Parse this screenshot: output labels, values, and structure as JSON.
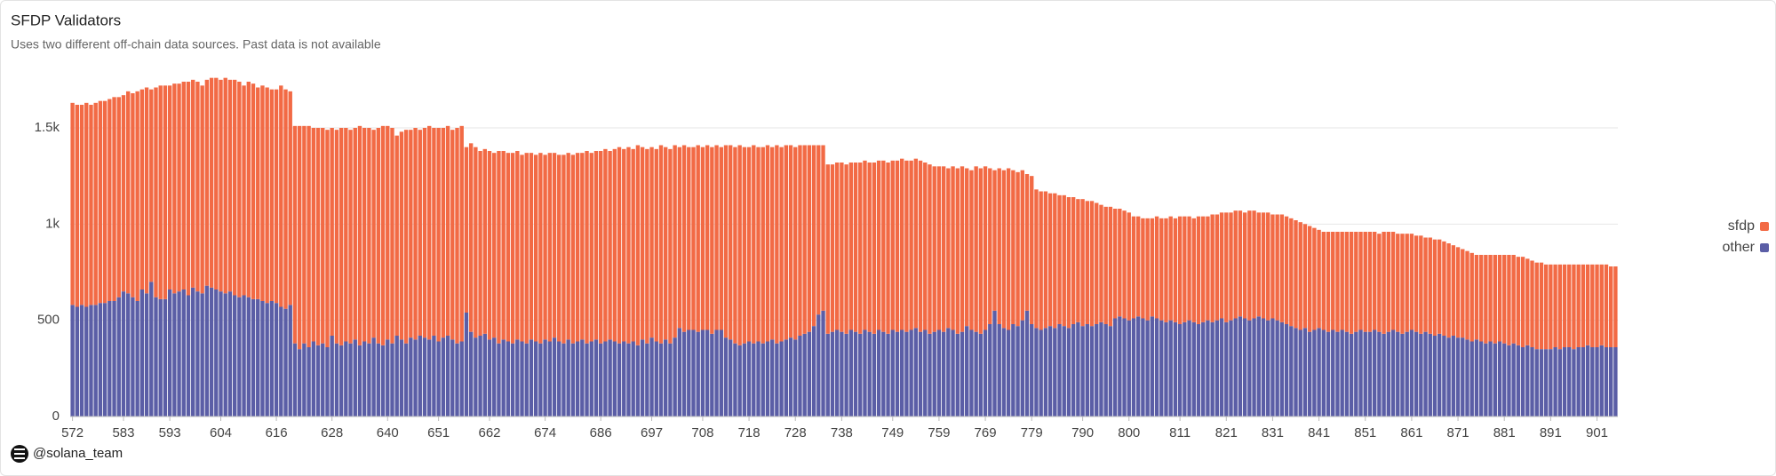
{
  "chart_data": {
    "type": "bar",
    "stacked": true,
    "title": "SFDP Validators",
    "subtitle": "Uses two different off-chain data sources. Past data is not available",
    "source": "@solana_team",
    "legend": "right",
    "grid": true,
    "xlim": [
      571.5,
      905.5
    ],
    "xticks": [
      572,
      583,
      593,
      604,
      616,
      628,
      640,
      651,
      662,
      674,
      686,
      697,
      708,
      718,
      728,
      738,
      749,
      759,
      769,
      779,
      790,
      800,
      811,
      821,
      831,
      841,
      851,
      861,
      871,
      881,
      891,
      901
    ],
    "ylim": [
      0,
      1800
    ],
    "yticks": [
      0,
      500,
      {
        "value": 1000,
        "label": "1k"
      },
      {
        "value": 1500,
        "label": "1.5k"
      }
    ],
    "x": [
      572,
      573,
      574,
      575,
      576,
      577,
      578,
      579,
      580,
      581,
      582,
      583,
      584,
      585,
      586,
      587,
      588,
      589,
      590,
      591,
      592,
      593,
      594,
      595,
      596,
      597,
      598,
      599,
      600,
      601,
      602,
      603,
      604,
      605,
      606,
      607,
      608,
      609,
      610,
      611,
      612,
      613,
      614,
      615,
      616,
      617,
      618,
      619,
      620,
      621,
      622,
      623,
      624,
      625,
      626,
      627,
      628,
      629,
      630,
      631,
      632,
      633,
      634,
      635,
      636,
      637,
      638,
      639,
      640,
      641,
      642,
      643,
      644,
      645,
      646,
      647,
      648,
      649,
      650,
      651,
      652,
      653,
      654,
      655,
      656,
      657,
      658,
      659,
      660,
      661,
      662,
      663,
      664,
      665,
      666,
      667,
      668,
      669,
      670,
      671,
      672,
      673,
      674,
      675,
      676,
      677,
      678,
      679,
      680,
      681,
      682,
      683,
      684,
      685,
      686,
      687,
      688,
      689,
      690,
      691,
      692,
      693,
      694,
      695,
      696,
      697,
      698,
      699,
      700,
      701,
      702,
      703,
      704,
      705,
      706,
      707,
      708,
      709,
      710,
      711,
      712,
      713,
      714,
      715,
      716,
      717,
      718,
      719,
      720,
      721,
      722,
      723,
      724,
      725,
      726,
      727,
      728,
      729,
      730,
      731,
      732,
      733,
      734,
      735,
      736,
      737,
      738,
      739,
      740,
      741,
      742,
      743,
      744,
      745,
      746,
      747,
      748,
      749,
      750,
      751,
      752,
      753,
      754,
      755,
      756,
      757,
      758,
      759,
      760,
      761,
      762,
      763,
      764,
      765,
      766,
      767,
      768,
      769,
      770,
      771,
      772,
      773,
      774,
      775,
      776,
      777,
      778,
      779,
      780,
      781,
      782,
      783,
      784,
      785,
      786,
      787,
      788,
      789,
      790,
      791,
      792,
      793,
      794,
      795,
      796,
      797,
      798,
      799,
      800,
      801,
      802,
      803,
      804,
      805,
      806,
      807,
      808,
      809,
      810,
      811,
      812,
      813,
      814,
      815,
      816,
      817,
      818,
      819,
      820,
      821,
      822,
      823,
      824,
      825,
      826,
      827,
      828,
      829,
      830,
      831,
      832,
      833,
      834,
      835,
      836,
      837,
      838,
      839,
      840,
      841,
      842,
      843,
      844,
      845,
      846,
      847,
      848,
      849,
      850,
      851,
      852,
      853,
      854,
      855,
      856,
      857,
      858,
      859,
      860,
      861,
      862,
      863,
      864,
      865,
      866,
      867,
      868,
      869,
      870,
      871,
      872,
      873,
      874,
      875,
      876,
      877,
      878,
      879,
      880,
      881,
      882,
      883,
      884,
      885,
      886,
      887,
      888,
      889,
      890,
      891,
      892,
      893,
      894,
      895,
      896,
      897,
      898,
      899,
      900,
      901,
      902,
      903,
      904,
      905
    ],
    "series": [
      {
        "name": "sfdp",
        "color": "#f26a45",
        "values": [
          1050,
          1050,
          1040,
          1060,
          1040,
          1050,
          1050,
          1050,
          1050,
          1060,
          1040,
          1020,
          1050,
          1060,
          1090,
          1040,
          1070,
          1000,
          1090,
          1110,
          1110,
          1060,
          1090,
          1080,
          1080,
          1110,
          1080,
          1090,
          1080,
          1070,
          1090,
          1100,
          1100,
          1120,
          1100,
          1120,
          1120,
          1090,
          1120,
          1120,
          1100,
          1120,
          1120,
          1100,
          1110,
          1150,
          1140,
          1110,
          1130,
          1160,
          1130,
          1150,
          1110,
          1130,
          1120,
          1130,
          1080,
          1110,
          1130,
          1110,
          1110,
          1100,
          1140,
          1110,
          1120,
          1080,
          1120,
          1140,
          1110,
          1120,
          1040,
          1080,
          1110,
          1080,
          1100,
          1070,
          1090,
          1110,
          1080,
          1110,
          1090,
          1090,
          1090,
          1120,
          1120,
          860,
          980,
          990,
          960,
          960,
          980,
          960,
          1000,
          980,
          980,
          990,
          980,
          970,
          990,
          970,
          970,
          990,
          960,
          980,
          960,
          970,
          980,
          970,
          980,
          980,
          970,
          1000,
          980,
          980,
          1000,
          1000,
          980,
          1000,
          1020,
          1000,
          1020,
          1000,
          1040,
          1000,
          1010,
          990,
          1000,
          1030,
          1000,
          1010,
          1000,
          940,
          970,
          950,
          950,
          970,
          950,
          960,
          970,
          960,
          950,
          1000,
          1010,
          1020,
          1040,
          1020,
          1010,
          1030,
          1010,
          1020,
          1020,
          1000,
          1030,
          1010,
          1010,
          1000,
          1000,
          990,
          980,
          970,
          940,
          880,
          860,
          880,
          870,
          870,
          880,
          880,
          870,
          880,
          890,
          880,
          880,
          890,
          880,
          890,
          890,
          880,
          890,
          890,
          890,
          880,
          880,
          890,
          870,
          880,
          860,
          850,
          860,
          830,
          850,
          860,
          860,
          820,
          830,
          860,
          860,
          850,
          810,
          730,
          810,
          820,
          840,
          800,
          800,
          780,
          710,
          770,
          720,
          720,
          710,
          690,
          700,
          670,
          680,
          680,
          660,
          640,
          660,
          640,
          650,
          630,
          610,
          610,
          620,
          570,
          560,
          560,
          560,
          530,
          520,
          520,
          530,
          510,
          530,
          530,
          540,
          540,
          540,
          560,
          550,
          540,
          540,
          560,
          550,
          540,
          560,
          550,
          550,
          570,
          560,
          560,
          550,
          550,
          570,
          560,
          540,
          550,
          560,
          540,
          550,
          560,
          560,
          560,
          560,
          560,
          540,
          550,
          530,
          510,
          510,
          520,
          510,
          520,
          510,
          520,
          530,
          520,
          510,
          520,
          520,
          510,
          510,
          530,
          520,
          510,
          510,
          520,
          510,
          500,
          500,
          510,
          490,
          500,
          500,
          490,
          490,
          490,
          470,
          470,
          460,
          460,
          460,
          440,
          450,
          460,
          450,
          460,
          450,
          460,
          470,
          460,
          460,
          470,
          450,
          450,
          450,
          450,
          440,
          440,
          430,
          440,
          430,
          430,
          440,
          430,
          430,
          420,
          430,
          430,
          420,
          430,
          420,
          420
        ]
      },
      {
        "name": "other",
        "color": "#5b5ea6",
        "values": [
          580,
          570,
          580,
          570,
          580,
          580,
          590,
          590,
          600,
          600,
          620,
          650,
          640,
          620,
          600,
          660,
          640,
          700,
          620,
          610,
          610,
          660,
          640,
          650,
          660,
          630,
          670,
          650,
          640,
          680,
          670,
          660,
          650,
          640,
          650,
          630,
          620,
          630,
          620,
          610,
          610,
          600,
          590,
          600,
          590,
          570,
          560,
          580,
          380,
          350,
          380,
          360,
          390,
          370,
          380,
          360,
          420,
          380,
          370,
          390,
          380,
          400,
          370,
          390,
          380,
          410,
          380,
          370,
          400,
          380,
          420,
          400,
          380,
          410,
          400,
          420,
          410,
          400,
          420,
          390,
          410,
          420,
          400,
          380,
          390,
          540,
          440,
          410,
          420,
          430,
          400,
          410,
          380,
          400,
          390,
          380,
          400,
          390,
          380,
          400,
          390,
          380,
          400,
          390,
          410,
          390,
          380,
          400,
          380,
          390,
          400,
          380,
          390,
          400,
          380,
          390,
          400,
          390,
          380,
          390,
          380,
          390,
          370,
          400,
          380,
          410,
          390,
          380,
          400,
          380,
          410,
          460,
          440,
          450,
          450,
          440,
          450,
          450,
          430,
          450,
          450,
          410,
          400,
          380,
          370,
          380,
          390,
          380,
          390,
          380,
          390,
          400,
          380,
          390,
          400,
          410,
          400,
          420,
          430,
          440,
          470,
          530,
          550,
          430,
          440,
          450,
          440,
          430,
          450,
          440,
          430,
          450,
          440,
          430,
          450,
          440,
          430,
          450,
          440,
          450,
          440,
          450,
          460,
          440,
          450,
          430,
          440,
          450,
          440,
          460,
          450,
          430,
          440,
          470,
          450,
          440,
          430,
          450,
          480,
          550,
          480,
          460,
          450,
          480,
          470,
          500,
          550,
          480,
          460,
          450,
          460,
          470,
          460,
          480,
          470,
          460,
          480,
          490,
          470,
          480,
          470,
          480,
          490,
          480,
          470,
          510,
          520,
          510,
          500,
          510,
          520,
          510,
          500,
          520,
          510,
          500,
          490,
          500,
          490,
          480,
          490,
          500,
          490,
          480,
          490,
          500,
          490,
          500,
          510,
          490,
          500,
          510,
          520,
          510,
          500,
          510,
          520,
          510,
          500,
          510,
          500,
          490,
          480,
          470,
          460,
          450,
          460,
          440,
          450,
          460,
          450,
          440,
          450,
          440,
          450,
          440,
          430,
          440,
          450,
          440,
          440,
          450,
          440,
          430,
          440,
          450,
          440,
          430,
          440,
          450,
          440,
          430,
          440,
          430,
          420,
          430,
          420,
          410,
          420,
          410,
          410,
          400,
          390,
          400,
          390,
          380,
          390,
          380,
          390,
          380,
          370,
          380,
          370,
          360,
          370,
          360,
          350,
          350,
          350,
          350,
          360,
          350,
          360,
          360,
          350,
          360,
          360,
          370,
          360,
          360,
          370,
          360,
          360,
          360
        ]
      }
    ]
  }
}
